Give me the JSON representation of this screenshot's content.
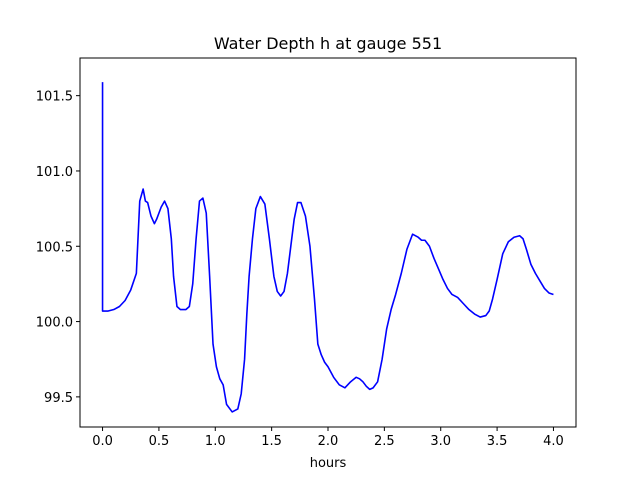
{
  "chart_data": {
    "type": "line",
    "title": "Water Depth h at gauge 551",
    "xlabel": "hours",
    "ylabel": "",
    "xlim": [
      -0.2,
      4.2
    ],
    "ylim": [
      99.3,
      101.75
    ],
    "xticks": [
      0.0,
      0.5,
      1.0,
      1.5,
      2.0,
      2.5,
      3.0,
      3.5,
      4.0
    ],
    "xtick_labels": [
      "0.0",
      "0.5",
      "1.0",
      "1.5",
      "2.0",
      "2.5",
      "3.0",
      "3.5",
      "4.0"
    ],
    "yticks": [
      99.5,
      100.0,
      100.5,
      101.0,
      101.5
    ],
    "ytick_labels": [
      "99.5",
      "100.0",
      "100.5",
      "101.0",
      "101.5"
    ],
    "grid": false,
    "series": [
      {
        "color": "#0000ff",
        "x": [
          0.0,
          0.0,
          0.0,
          0.05,
          0.1,
          0.15,
          0.2,
          0.25,
          0.3,
          0.33,
          0.36,
          0.38,
          0.4,
          0.43,
          0.46,
          0.48,
          0.5,
          0.52,
          0.55,
          0.58,
          0.61,
          0.63,
          0.66,
          0.69,
          0.72,
          0.74,
          0.77,
          0.8,
          0.83,
          0.86,
          0.89,
          0.92,
          0.95,
          0.98,
          1.01,
          1.04,
          1.07,
          1.1,
          1.15,
          1.2,
          1.23,
          1.26,
          1.28,
          1.3,
          1.33,
          1.36,
          1.4,
          1.44,
          1.48,
          1.52,
          1.55,
          1.58,
          1.61,
          1.64,
          1.67,
          1.7,
          1.73,
          1.76,
          1.8,
          1.84,
          1.88,
          1.91,
          1.94,
          1.97,
          2.0,
          2.05,
          2.1,
          2.15,
          2.2,
          2.25,
          2.28,
          2.31,
          2.34,
          2.37,
          2.4,
          2.44,
          2.48,
          2.52,
          2.56,
          2.6,
          2.65,
          2.7,
          2.75,
          2.8,
          2.83,
          2.86,
          2.9,
          2.94,
          2.98,
          3.02,
          3.06,
          3.1,
          3.15,
          3.2,
          3.25,
          3.3,
          3.35,
          3.4,
          3.43,
          3.46,
          3.5,
          3.55,
          3.6,
          3.65,
          3.7,
          3.73,
          3.76,
          3.8,
          3.84,
          3.88,
          3.92,
          3.96,
          4.0
        ],
        "y": [
          101.59,
          100.46,
          100.07,
          100.07,
          100.08,
          100.1,
          100.14,
          100.21,
          100.32,
          100.8,
          100.88,
          100.8,
          100.79,
          100.7,
          100.65,
          100.68,
          100.72,
          100.76,
          100.8,
          100.75,
          100.55,
          100.3,
          100.1,
          100.08,
          100.08,
          100.08,
          100.1,
          100.25,
          100.55,
          100.8,
          100.82,
          100.72,
          100.3,
          99.85,
          99.7,
          99.62,
          99.58,
          99.45,
          99.4,
          99.42,
          99.52,
          99.75,
          100.05,
          100.3,
          100.55,
          100.75,
          100.83,
          100.78,
          100.55,
          100.3,
          100.2,
          100.17,
          100.2,
          100.32,
          100.5,
          100.68,
          100.79,
          100.79,
          100.7,
          100.5,
          100.15,
          99.85,
          99.78,
          99.73,
          99.7,
          99.63,
          99.58,
          99.56,
          99.6,
          99.63,
          99.62,
          99.6,
          99.57,
          99.55,
          99.56,
          99.6,
          99.75,
          99.95,
          100.08,
          100.18,
          100.32,
          100.48,
          100.58,
          100.56,
          100.54,
          100.54,
          100.5,
          100.42,
          100.35,
          100.28,
          100.22,
          100.18,
          100.16,
          100.12,
          100.08,
          100.05,
          100.03,
          100.04,
          100.07,
          100.15,
          100.28,
          100.45,
          100.53,
          100.56,
          100.57,
          100.55,
          100.48,
          100.38,
          100.32,
          100.27,
          100.22,
          100.19,
          100.18
        ]
      }
    ]
  }
}
